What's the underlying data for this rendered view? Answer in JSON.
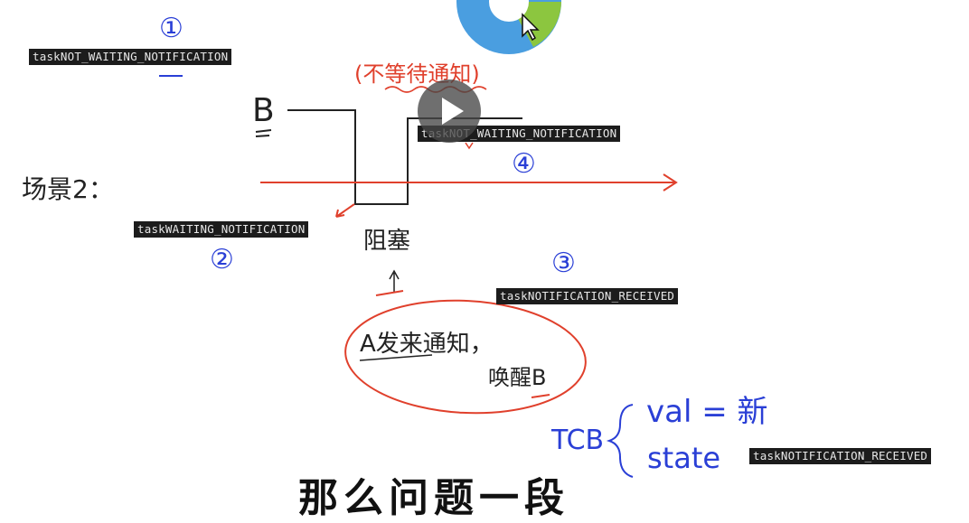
{
  "labels": {
    "l1": "taskNOT_WAITING_NOTIFICATION",
    "l4": "taskNOT_WAITING_NOTIFICATION",
    "l2": "taskWAITING_NOTIFICATION",
    "l3": "taskNOTIFICATION_RECEIVED",
    "tcb_state": "taskNOTIFICATION_RECEIVED"
  },
  "numbers": {
    "n1": "①",
    "n2": "②",
    "n3": "③",
    "n4": "④"
  },
  "handwriting": {
    "b": "B",
    "scene": "场景2：",
    "blocked": "阻塞",
    "not_waiting": "(不等待通知)",
    "a_sends": "A发来通知，",
    "wake_b": "唤醒B",
    "tcb": "TCB",
    "val": "val = 新",
    "state": "state"
  },
  "subtitle": "那么问题一段",
  "colors": {
    "blue": "#2a3fd6",
    "red": "#e0402c",
    "label_bg": "#1c1c1c"
  },
  "icons": [
    "play-icon",
    "cursor-icon",
    "disc-logo-icon"
  ]
}
